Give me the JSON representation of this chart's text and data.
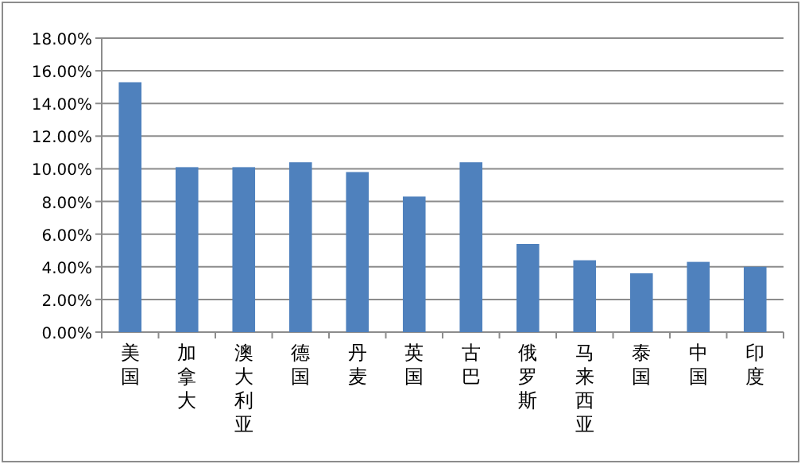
{
  "chart_data": {
    "type": "bar",
    "categories": [
      "美国",
      "加拿大",
      "澳大利亚",
      "德国",
      "丹麦",
      "英国",
      "古巴",
      "俄罗斯",
      "马来西亚",
      "泰国",
      "中国",
      "印度"
    ],
    "values": [
      15.3,
      10.1,
      10.1,
      10.4,
      9.8,
      8.3,
      10.4,
      5.4,
      4.4,
      3.6,
      4.3,
      4.0
    ],
    "color": "#4f81bd",
    "ylim": [
      0,
      18
    ],
    "yticks": [
      {
        "value": 0,
        "label": "0.00%"
      },
      {
        "value": 2,
        "label": "2.00%"
      },
      {
        "value": 4,
        "label": "4.00%"
      },
      {
        "value": 6,
        "label": "6.00%"
      },
      {
        "value": 8,
        "label": "8.00%"
      },
      {
        "value": 10,
        "label": "10.00%"
      },
      {
        "value": 12,
        "label": "12.00%"
      },
      {
        "value": 14,
        "label": "14.00%"
      },
      {
        "value": 16,
        "label": "16.00%"
      },
      {
        "value": 18,
        "label": "18.00%"
      }
    ],
    "grid": "y"
  }
}
